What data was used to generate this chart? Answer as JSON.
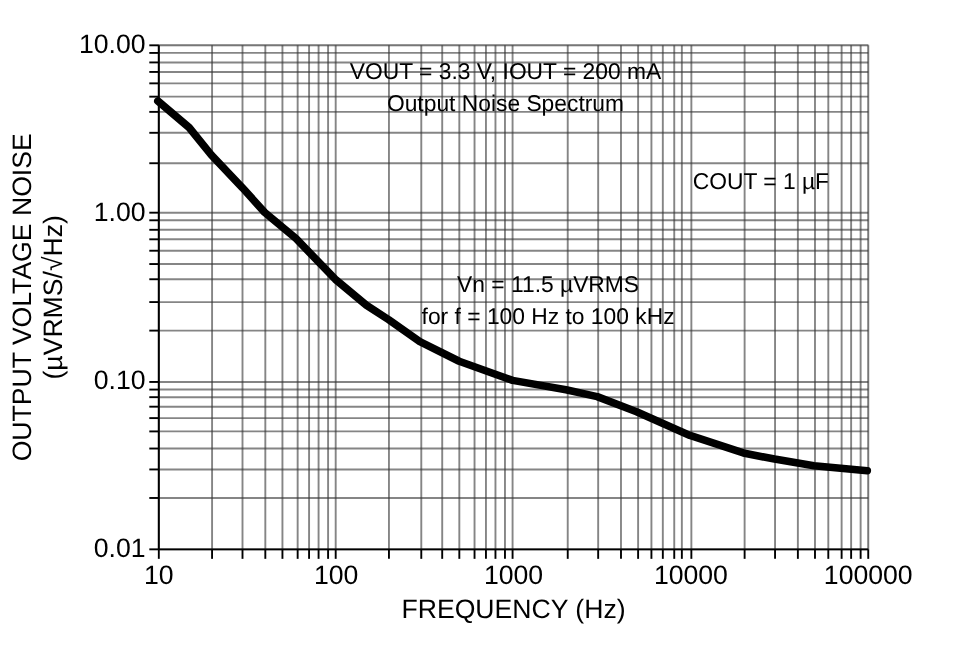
{
  "chart_data": {
    "type": "line",
    "xlabel": "FREQUENCY (Hz)",
    "ylabel": "OUTPUT VOLTAGE NOISE\n(µVRMS/√Hz)",
    "annotations": [
      "VOUT = 3.3 V, IOUT = 200 mA",
      "Output Noise Spectrum",
      "COUT = 1 µF",
      "Vn = 11.5 µVRMS",
      "for f = 100 Hz to 100 kHz"
    ],
    "x": [
      10,
      15,
      20,
      30,
      40,
      60,
      100,
      150,
      200,
      300,
      500,
      1000,
      2000,
      3000,
      5000,
      10000,
      20000,
      30000,
      50000,
      100000
    ],
    "series": [
      {
        "color": "#000000",
        "values": [
          4.6,
          3.2,
          2.2,
          1.4,
          1.0,
          0.7,
          0.4,
          0.28,
          0.23,
          0.17,
          0.13,
          0.1,
          0.088,
          0.08,
          0.065,
          0.047,
          0.037,
          0.034,
          0.031,
          0.029
        ]
      }
    ],
    "log": "xy",
    "grid": true,
    "marker": "none",
    "line_style": "solid",
    "xlim": [
      10,
      100000
    ],
    "xticks": [
      10,
      {
        "value": 20,
        "label": null
      },
      {
        "value": 30,
        "label": null
      },
      {
        "value": 40,
        "label": null
      },
      {
        "value": 50,
        "label": null
      },
      {
        "value": 60,
        "label": null
      },
      {
        "value": 70,
        "label": null
      },
      {
        "value": 80,
        "label": null
      },
      {
        "value": 90,
        "label": null
      },
      100,
      {
        "value": 200,
        "label": null
      },
      {
        "value": 300,
        "label": null
      },
      {
        "value": 400,
        "label": null
      },
      {
        "value": 500,
        "label": null
      },
      {
        "value": 600,
        "label": null
      },
      {
        "value": 700,
        "label": null
      },
      {
        "value": 800,
        "label": null
      },
      {
        "value": 900,
        "label": null
      },
      1000,
      {
        "value": 2000,
        "label": null
      },
      {
        "value": 3000,
        "label": null
      },
      {
        "value": 4000,
        "label": null
      },
      {
        "value": 5000,
        "label": null
      },
      {
        "value": 6000,
        "label": null
      },
      {
        "value": 7000,
        "label": null
      },
      {
        "value": 8000,
        "label": null
      },
      {
        "value": 9000,
        "label": null
      },
      10000,
      {
        "value": 20000,
        "label": null
      },
      {
        "value": 30000,
        "label": null
      },
      {
        "value": 40000,
        "label": null
      },
      {
        "value": 50000,
        "label": null
      },
      {
        "value": 60000,
        "label": null
      },
      {
        "value": 70000,
        "label": null
      },
      {
        "value": 80000,
        "label": null
      },
      {
        "value": 90000,
        "label": null
      },
      100000
    ],
    "ylim": [
      0.01,
      10
    ],
    "yticks": [
      {
        "value": 0.01,
        "label": "0.01"
      },
      {
        "value": 0.02,
        "label": null
      },
      {
        "value": 0.03,
        "label": null
      },
      {
        "value": 0.04,
        "label": null
      },
      {
        "value": 0.05,
        "label": null
      },
      {
        "value": 0.06,
        "label": null
      },
      {
        "value": 0.07,
        "label": null
      },
      {
        "value": 0.08,
        "label": null
      },
      {
        "value": 0.09,
        "label": null
      },
      {
        "value": 0.1,
        "label": "0.10"
      },
      {
        "value": 0.2,
        "label": null
      },
      {
        "value": 0.3,
        "label": null
      },
      {
        "value": 0.4,
        "label": null
      },
      {
        "value": 0.5,
        "label": null
      },
      {
        "value": 0.6,
        "label": null
      },
      {
        "value": 0.7,
        "label": null
      },
      {
        "value": 0.8,
        "label": null
      },
      {
        "value": 0.9,
        "label": null
      },
      {
        "value": 1,
        "label": "1.00"
      },
      {
        "value": 2,
        "label": null
      },
      {
        "value": 3,
        "label": null
      },
      {
        "value": 4,
        "label": null
      },
      {
        "value": 5,
        "label": null
      },
      {
        "value": 6,
        "label": null
      },
      {
        "value": 7,
        "label": null
      },
      {
        "value": 8,
        "label": null
      },
      {
        "value": 9,
        "label": null
      },
      {
        "value": 10,
        "label": "10.00"
      }
    ]
  }
}
